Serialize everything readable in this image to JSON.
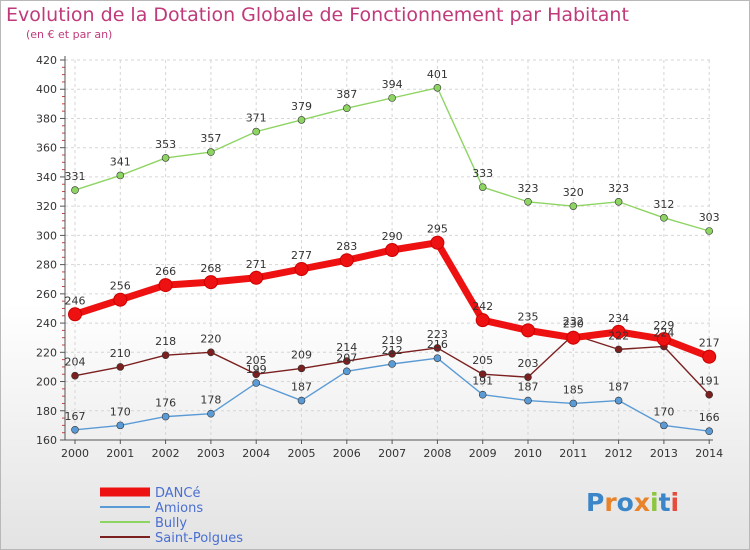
{
  "title": "Evolution de la Dotation Globale de Fonctionnement par Habitant",
  "subtitle": "(en € et par an)",
  "logo": {
    "text": "Proxiti",
    "letters": [
      "P",
      "r",
      "o",
      "x",
      "i",
      "t",
      "i"
    ],
    "colors": [
      "#3a86c8",
      "#e8832a",
      "#3a86c8",
      "#e8832a",
      "#8cc63f",
      "#3a86c8",
      "#e84b3a"
    ]
  },
  "chart_data": {
    "type": "line",
    "title": "Evolution de la Dotation Globale de Fonctionnement par Habitant",
    "subtitle": "(en € et par an)",
    "xlabel": "",
    "ylabel": "",
    "ylim": [
      160,
      420
    ],
    "yticks": [
      160,
      180,
      200,
      220,
      240,
      260,
      280,
      300,
      320,
      340,
      360,
      380,
      400,
      420
    ],
    "x": [
      "2000",
      "2001",
      "2002",
      "2003",
      "2004",
      "2005",
      "2006",
      "2007",
      "2008",
      "2009",
      "2010",
      "2011",
      "2012",
      "2013",
      "2014"
    ],
    "legend_position": "bottom-left",
    "series": [
      {
        "name": "DANCé",
        "color": "#ee1111",
        "values": [
          246,
          256,
          266,
          268,
          271,
          277,
          283,
          290,
          295,
          242,
          235,
          230,
          234,
          229,
          217
        ]
      },
      {
        "name": "Amions",
        "color": "#5b9bd5",
        "values": [
          167,
          170,
          176,
          178,
          199,
          187,
          207,
          212,
          216,
          191,
          187,
          185,
          187,
          170,
          166
        ]
      },
      {
        "name": "Bully",
        "color": "#8ed463",
        "values": [
          331,
          341,
          353,
          357,
          371,
          379,
          387,
          394,
          401,
          333,
          323,
          320,
          323,
          312,
          303
        ]
      },
      {
        "name": "Saint-Polgues",
        "color": "#7b1f1f",
        "values": [
          204,
          210,
          218,
          220,
          205,
          209,
          214,
          219,
          223,
          205,
          203,
          232,
          222,
          224,
          191
        ]
      }
    ]
  }
}
